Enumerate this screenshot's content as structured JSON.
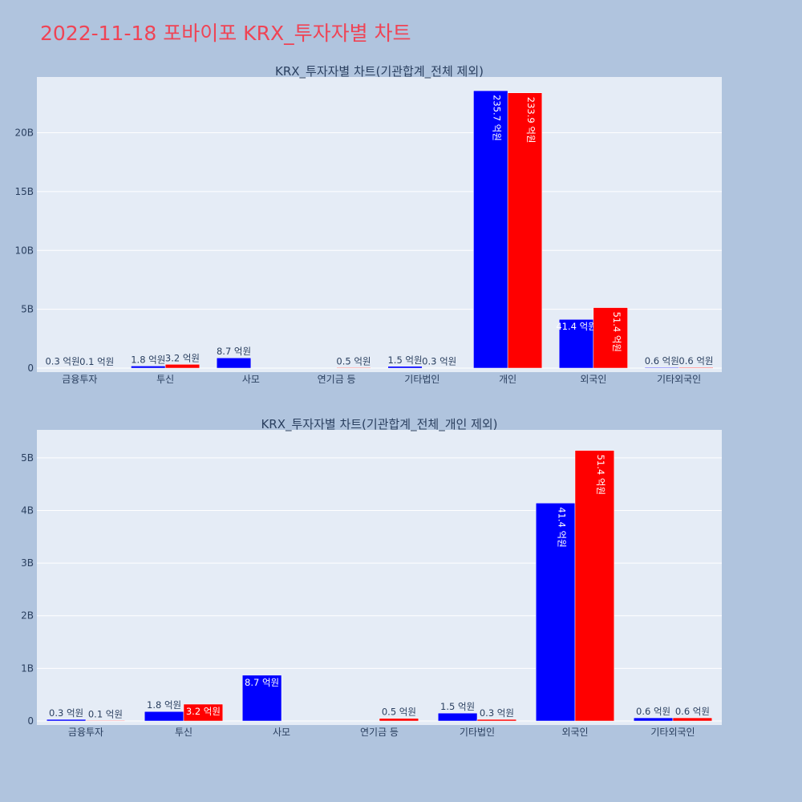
{
  "title": "2022-11-18 포바이포 KRX_투자자별 차트",
  "colors": {
    "buy": "#0000ff",
    "sell": "#ff0000",
    "title": "#ef4455",
    "plot_bg": "#e5ecf6",
    "page_bg": "#b0c4de"
  },
  "chart_data": [
    {
      "type": "bar",
      "title": "KRX_투자자별 차트(기관합계_전체 제외)",
      "categories": [
        "금융투자",
        "투신",
        "사모",
        "연기금 등",
        "기타법인",
        "개인",
        "외국인",
        "기타외국인"
      ],
      "series": [
        {
          "color": "#0000ff",
          "values": [
            30000000,
            180000000,
            870000000,
            0,
            150000000,
            23570000000,
            4140000000,
            60000000
          ],
          "labels": [
            "0.3 억원",
            "1.8 억원",
            "8.7 억원",
            "",
            "1.5 억원",
            "235.7 억원",
            "41.4 억원",
            "0.6 억원"
          ]
        },
        {
          "color": "#ff0000",
          "values": [
            10000000,
            320000000,
            0,
            50000000,
            30000000,
            23390000000,
            5140000000,
            60000000
          ],
          "labels": [
            "0.1 억원",
            "3.2 억원",
            "",
            "0.5 억원",
            "0.3 억원",
            "233.9 억원",
            "51.4 억원",
            "0.6 억원"
          ]
        }
      ],
      "ylim": [
        0,
        24600000000
      ],
      "yticks": [
        0,
        5000000000,
        10000000000,
        15000000000,
        20000000000
      ],
      "yticklabels": [
        "0",
        "5B",
        "10B",
        "15B",
        "20B"
      ],
      "grid": true
    },
    {
      "type": "bar",
      "title": "KRX_투자자별 차트(기관합계_전체_개인 제외)",
      "categories": [
        "금융투자",
        "투신",
        "사모",
        "연기금 등",
        "기타법인",
        "외국인",
        "기타외국인"
      ],
      "series": [
        {
          "color": "#0000ff",
          "values": [
            30000000,
            180000000,
            870000000,
            0,
            150000000,
            4140000000,
            60000000
          ],
          "labels": [
            "0.3 억원",
            "1.8 억원",
            "8.7 억원",
            "",
            "1.5 억원",
            "41.4 억원",
            "0.6 억원"
          ]
        },
        {
          "color": "#ff0000",
          "values": [
            10000000,
            320000000,
            0,
            50000000,
            30000000,
            5140000000,
            60000000
          ],
          "labels": [
            "0.1 억원",
            "3.2 억원",
            "",
            "0.5 억원",
            "0.3 억원",
            "51.4 억원",
            "0.6 억원"
          ]
        }
      ],
      "ylim": [
        0,
        5500000000
      ],
      "yticks": [
        0,
        1000000000,
        2000000000,
        3000000000,
        4000000000,
        5000000000
      ],
      "yticklabels": [
        "0",
        "1B",
        "2B",
        "3B",
        "4B",
        "5B"
      ],
      "grid": true
    }
  ]
}
